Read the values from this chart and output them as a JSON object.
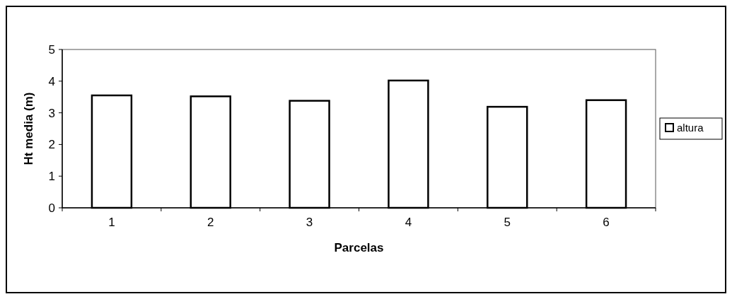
{
  "chart_data": {
    "type": "bar",
    "xlabel": "Parcelas",
    "ylabel": "Ht media (m)",
    "categories": [
      "1",
      "2",
      "3",
      "4",
      "5",
      "6"
    ],
    "series": [
      {
        "name": "altura",
        "color": "#ffffff",
        "values": [
          3.55,
          3.52,
          3.38,
          4.02,
          3.19,
          3.4
        ]
      }
    ],
    "ylim": [
      0,
      5
    ],
    "yticks": [
      0,
      1,
      2,
      3,
      4,
      5
    ],
    "grid": false,
    "legend": "right"
  }
}
